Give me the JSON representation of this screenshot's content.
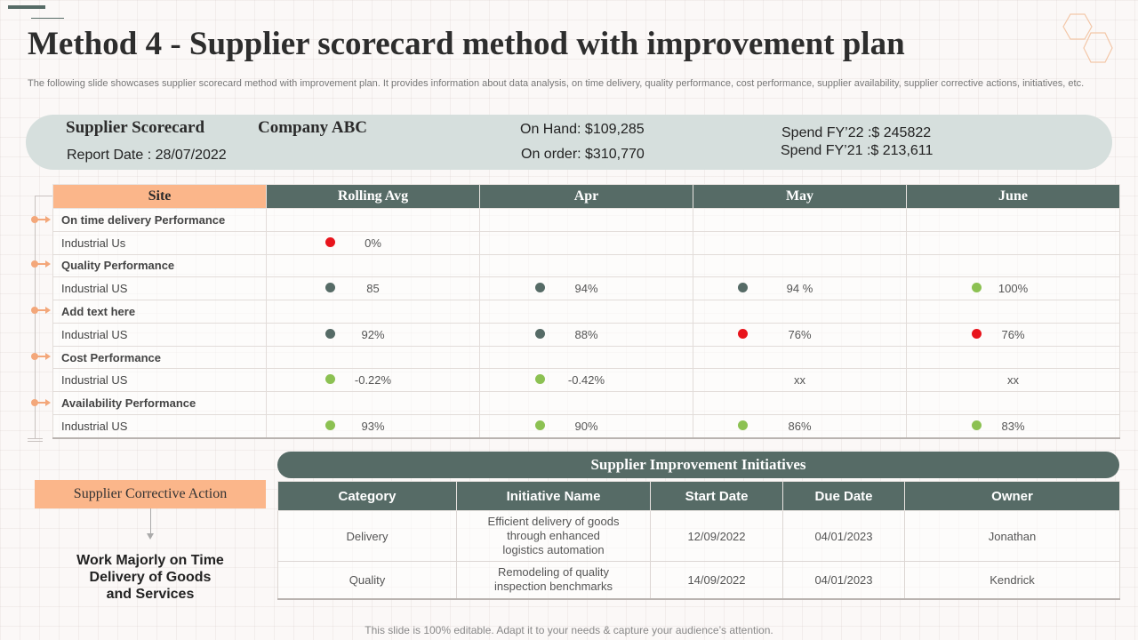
{
  "header": {
    "title": "Method 4 - Supplier scorecard method with improvement plan",
    "subtitle": "The following slide showcases supplier scorecard method with improvement plan. It provides information about data analysis, on time delivery, quality performance, cost performance, supplier availability, supplier corrective actions, initiatives, etc."
  },
  "summary": {
    "scorecard_label": "Supplier Scorecard",
    "company": "Company ABC",
    "report_date": "Report Date : 28/07/2022",
    "on_hand": "On Hand: $109,285",
    "on_order": "On order: $310,770",
    "spend_fy22": "Spend FY’22 :$ 245822",
    "spend_fy21": "Spend FY’21 :$ 213,611"
  },
  "scorecard": {
    "headers": [
      "Site",
      "Rolling Avg",
      "Apr",
      "May",
      "June"
    ],
    "rows": [
      {
        "type": "section",
        "label": "On time delivery Performance"
      },
      {
        "type": "data",
        "label": "Industrial Us",
        "cells": [
          {
            "value": "0%",
            "status": "red"
          },
          {
            "value": "",
            "status": ""
          },
          {
            "value": "",
            "status": ""
          },
          {
            "value": "",
            "status": ""
          }
        ]
      },
      {
        "type": "section",
        "label": "Quality Performance"
      },
      {
        "type": "data",
        "label": "Industrial US",
        "cells": [
          {
            "value": "85",
            "status": "dark"
          },
          {
            "value": "94%",
            "status": "dark"
          },
          {
            "value": "94 %",
            "status": "dark"
          },
          {
            "value": "100%",
            "status": "green"
          }
        ]
      },
      {
        "type": "section",
        "label": "Add text here"
      },
      {
        "type": "data",
        "label": "Industrial US",
        "cells": [
          {
            "value": "92%",
            "status": "dark"
          },
          {
            "value": "88%",
            "status": "dark"
          },
          {
            "value": "76%",
            "status": "red"
          },
          {
            "value": "76%",
            "status": "red"
          }
        ]
      },
      {
        "type": "section",
        "label": "Cost  Performance"
      },
      {
        "type": "data",
        "label": "Industrial US",
        "cells": [
          {
            "value": "-0.22%",
            "status": "green"
          },
          {
            "value": "-0.42%",
            "status": "green"
          },
          {
            "value": "xx",
            "status": ""
          },
          {
            "value": "xx",
            "status": ""
          }
        ]
      },
      {
        "type": "section",
        "label": "Availability Performance"
      },
      {
        "type": "data",
        "label": "Industrial US",
        "cells": [
          {
            "value": "93%",
            "status": "green"
          },
          {
            "value": "90%",
            "status": "green"
          },
          {
            "value": "86%",
            "status": "green"
          },
          {
            "value": "83%",
            "status": "green"
          }
        ]
      }
    ]
  },
  "status_colors": {
    "red": "#e8141c",
    "dark": "#566b66",
    "green": "#8cc152"
  },
  "corrective": {
    "label": "Supplier Corrective Action",
    "line1": "Work Majorly on Time",
    "line2": "Delivery of Goods",
    "line3": "and Services"
  },
  "initiatives": {
    "title": "Supplier Improvement Initiatives",
    "headers": [
      "Category",
      "Initiative Name",
      "Start Date",
      "Due Date",
      "Owner"
    ],
    "rows": [
      {
        "category": "Delivery",
        "initiative": [
          "Efficient delivery of goods",
          "through enhanced",
          "logistics automation"
        ],
        "start": "12/09/2022",
        "due": "04/01/2023",
        "owner": "Jonathan"
      },
      {
        "category": "Quality",
        "initiative": [
          "Remodeling of quality",
          "inspection benchmarks"
        ],
        "start": "14/09/2022",
        "due": "04/01/2023",
        "owner": "Kendrick"
      }
    ]
  },
  "footer": "This slide is 100% editable. Adapt it to your needs & capture your audience’s attention.",
  "colors": {
    "accent": "#566b66",
    "peach": "#fbb68a",
    "summary_bg": "#d6dfdd"
  }
}
